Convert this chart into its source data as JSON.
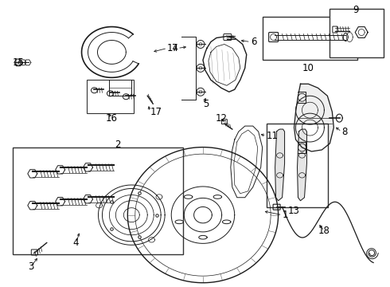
{
  "background_color": "#ffffff",
  "line_color": "#1a1a1a",
  "label_color": "#000000",
  "border_color": "#333333",
  "figsize": [
    4.9,
    3.6
  ],
  "dpi": 100
}
